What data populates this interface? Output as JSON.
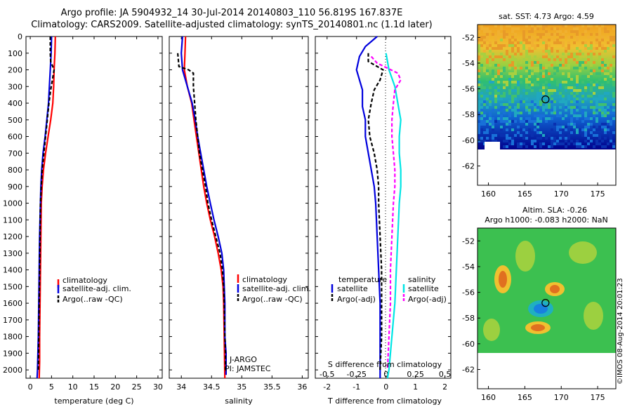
{
  "header": {
    "title_line1": "Argo profile: JA 5904932_14 30-Jul-2014 20140803_110 56.819S 167.837E",
    "title_line2": "Climatology: CARS2009. Satellite-adjusted climatology: synTS_20140801.nc (1.1d later)"
  },
  "footer": {
    "stamp": "©IMOS 08-Aug-2014 20:01:23"
  },
  "colors": {
    "climatology": "#ff0000",
    "satellite": "#0000dd",
    "argo": "#000000",
    "sal_satellite": "#00e5e5",
    "sal_argo": "#ff00ff"
  },
  "chart_data": [
    {
      "type": "line",
      "xlabel": "temperature (deg C)",
      "xlim": [
        -1,
        31
      ],
      "x_ticks": [
        "0",
        "5",
        "10",
        "15",
        "20",
        "25",
        "30"
      ],
      "ylim": [
        2050,
        0
      ],
      "y_ticks": [
        "0",
        "100",
        "200",
        "300",
        "400",
        "500",
        "600",
        "700",
        "800",
        "900",
        "1000",
        "1100",
        "1200",
        "1300",
        "1400",
        "1500",
        "1600",
        "1700",
        "1800",
        "1900",
        "2000"
      ],
      "legend": [
        "climatology",
        "satellite-adj. clim.",
        "Argo(..raw -QC)"
      ],
      "legend_placement": "lower-center",
      "series": [
        {
          "name": "climatology",
          "color": "#ff0000",
          "dash": "",
          "points": [
            [
              5.9,
              0
            ],
            [
              5.8,
              100
            ],
            [
              5.6,
              200
            ],
            [
              5.5,
              300
            ],
            [
              5.3,
              400
            ],
            [
              4.8,
              500
            ],
            [
              4.2,
              600
            ],
            [
              3.6,
              700
            ],
            [
              3.1,
              800
            ],
            [
              2.8,
              900
            ],
            [
              2.6,
              1000
            ],
            [
              2.5,
              1200
            ],
            [
              2.4,
              1400
            ],
            [
              2.3,
              1600
            ],
            [
              2.2,
              1800
            ],
            [
              2.2,
              1950
            ],
            [
              2.1,
              2050
            ]
          ]
        },
        {
          "name": "satellite-adj. clim.",
          "color": "#0000dd",
          "dash": "",
          "points": [
            [
              5.0,
              0
            ],
            [
              4.9,
              100
            ],
            [
              4.7,
              200
            ],
            [
              4.5,
              300
            ],
            [
              4.3,
              400
            ],
            [
              3.9,
              500
            ],
            [
              3.5,
              600
            ],
            [
              3.0,
              700
            ],
            [
              2.7,
              800
            ],
            [
              2.5,
              900
            ],
            [
              2.4,
              1000
            ],
            [
              2.2,
              1200
            ],
            [
              2.1,
              1400
            ],
            [
              2.0,
              1600
            ],
            [
              1.9,
              1800
            ],
            [
              1.7,
              2000
            ],
            [
              1.6,
              2050
            ]
          ]
        },
        {
          "name": "Argo(..raw -QC)",
          "color": "#000000",
          "dash": "5,3",
          "points": [
            [
              4.7,
              0
            ],
            [
              4.7,
              100
            ],
            [
              4.8,
              150
            ],
            [
              5.6,
              200
            ],
            [
              5.2,
              260
            ],
            [
              4.8,
              320
            ],
            [
              4.4,
              400
            ],
            [
              4.0,
              500
            ],
            [
              3.6,
              600
            ],
            [
              3.2,
              700
            ],
            [
              2.8,
              800
            ],
            [
              2.6,
              900
            ],
            [
              2.4,
              1000
            ],
            [
              2.3,
              1200
            ],
            [
              2.2,
              1400
            ],
            [
              2.1,
              1600
            ],
            [
              2.0,
              1800
            ],
            [
              1.9,
              2000
            ]
          ]
        }
      ]
    },
    {
      "type": "line",
      "xlabel": "salinity",
      "xlim": [
        33.8,
        36.1
      ],
      "x_ticks": [
        "34",
        "34.5",
        "35",
        "35.5",
        "36"
      ],
      "ylim": [
        2050,
        0
      ],
      "legend": [
        "climatology",
        "satellite-adj. clim.",
        "Argo(..raw -QC)"
      ],
      "legend_placement": "lower-right",
      "annotations": [
        "J-ARGO",
        "PI: JAMSTEC"
      ],
      "series": [
        {
          "name": "climatology",
          "color": "#ff0000",
          "dash": "",
          "points": [
            [
              34.07,
              0
            ],
            [
              34.06,
              100
            ],
            [
              34.05,
              200
            ],
            [
              34.1,
              300
            ],
            [
              34.17,
              400
            ],
            [
              34.21,
              500
            ],
            [
              34.25,
              600
            ],
            [
              34.29,
              700
            ],
            [
              34.33,
              800
            ],
            [
              34.37,
              900
            ],
            [
              34.42,
              1000
            ],
            [
              34.48,
              1100
            ],
            [
              34.55,
              1200
            ],
            [
              34.61,
              1300
            ],
            [
              34.66,
              1400
            ],
            [
              34.69,
              1500
            ],
            [
              34.7,
              1600
            ],
            [
              34.71,
              1800
            ],
            [
              34.72,
              2050
            ]
          ]
        },
        {
          "name": "satellite-adj. clim.",
          "color": "#0000dd",
          "dash": "",
          "points": [
            [
              34.02,
              0
            ],
            [
              34.0,
              100
            ],
            [
              34.02,
              200
            ],
            [
              34.1,
              300
            ],
            [
              34.18,
              400
            ],
            [
              34.23,
              500
            ],
            [
              34.27,
              600
            ],
            [
              34.32,
              700
            ],
            [
              34.37,
              800
            ],
            [
              34.42,
              900
            ],
            [
              34.48,
              1000
            ],
            [
              34.54,
              1100
            ],
            [
              34.61,
              1200
            ],
            [
              34.67,
              1300
            ],
            [
              34.7,
              1400
            ],
            [
              34.71,
              1500
            ],
            [
              34.72,
              1600
            ],
            [
              34.72,
              1800
            ],
            [
              34.74,
              1900
            ],
            [
              34.74,
              2030
            ]
          ]
        },
        {
          "name": "Argo(..raw -QC)",
          "color": "#000000",
          "dash": "5,3",
          "points": [
            [
              33.94,
              100
            ],
            [
              33.96,
              180
            ],
            [
              34.12,
              200
            ],
            [
              34.2,
              220
            ],
            [
              34.2,
              300
            ],
            [
              34.22,
              400
            ],
            [
              34.24,
              500
            ],
            [
              34.27,
              600
            ],
            [
              34.3,
              700
            ],
            [
              34.35,
              800
            ],
            [
              34.4,
              900
            ],
            [
              34.44,
              1000
            ],
            [
              34.5,
              1100
            ],
            [
              34.57,
              1200
            ],
            [
              34.64,
              1300
            ],
            [
              34.68,
              1400
            ],
            [
              34.7,
              1500
            ],
            [
              34.71,
              1600
            ],
            [
              34.72,
              1800
            ],
            [
              34.73,
              1900
            ],
            [
              34.73,
              2000
            ]
          ]
        }
      ]
    },
    {
      "type": "line",
      "xlabel": "T difference from climatology",
      "xlabel_top": "S difference from climatology",
      "xlim": [
        -2.4,
        2.2
      ],
      "x_ticks": [
        "-2",
        "-1",
        "0",
        "1",
        "2"
      ],
      "x_ticks_salinity": [
        "-0.5",
        "-0.25",
        "0",
        "0.25",
        "0.5"
      ],
      "ylim": [
        2050,
        0
      ],
      "legend": [
        "temperature",
        "satellite",
        "Argo(-adj)",
        "salinity",
        "satellite",
        "Argo(-adj)"
      ],
      "legend_placement": "lower-center",
      "series": [
        {
          "name": "temperature satellite",
          "color": "#0000dd",
          "dash": "",
          "points": [
            [
              -0.3,
              0
            ],
            [
              -0.7,
              60
            ],
            [
              -0.9,
              120
            ],
            [
              -1.0,
              200
            ],
            [
              -0.9,
              260
            ],
            [
              -0.8,
              320
            ],
            [
              -0.8,
              420
            ],
            [
              -0.7,
              500
            ],
            [
              -0.7,
              600
            ],
            [
              -0.6,
              700
            ],
            [
              -0.5,
              800
            ],
            [
              -0.4,
              900
            ],
            [
              -0.35,
              1000
            ],
            [
              -0.3,
              1200
            ],
            [
              -0.25,
              1400
            ],
            [
              -0.2,
              1600
            ],
            [
              -0.2,
              1800
            ],
            [
              -0.2,
              2050
            ]
          ]
        },
        {
          "name": "temperature Argo(-adj)",
          "color": "#000000",
          "dash": "5,3",
          "points": [
            [
              -0.6,
              100
            ],
            [
              -0.6,
              150
            ],
            [
              -0.1,
              200
            ],
            [
              -0.2,
              260
            ],
            [
              -0.4,
              320
            ],
            [
              -0.5,
              400
            ],
            [
              -0.6,
              500
            ],
            [
              -0.55,
              600
            ],
            [
              -0.4,
              700
            ],
            [
              -0.3,
              800
            ],
            [
              -0.25,
              900
            ],
            [
              -0.25,
              1000
            ],
            [
              -0.2,
              1200
            ],
            [
              -0.15,
              1400
            ],
            [
              -0.15,
              1600
            ],
            [
              -0.15,
              1800
            ],
            [
              -0.2,
              2000
            ]
          ]
        },
        {
          "name": "salinity satellite",
          "color": "#00e5e5",
          "dash": "",
          "points": [
            [
              0.0,
              100
            ],
            [
              0.1,
              200
            ],
            [
              0.3,
              300
            ],
            [
              0.4,
              400
            ],
            [
              0.5,
              500
            ],
            [
              0.45,
              600
            ],
            [
              0.45,
              700
            ],
            [
              0.5,
              800
            ],
            [
              0.5,
              900
            ],
            [
              0.45,
              1000
            ],
            [
              0.4,
              1200
            ],
            [
              0.35,
              1400
            ],
            [
              0.3,
              1600
            ],
            [
              0.2,
              1800
            ],
            [
              0.1,
              2000
            ],
            [
              0.05,
              2050
            ]
          ]
        },
        {
          "name": "salinity Argo(-adj)",
          "color": "#ff00ff",
          "dash": "5,3",
          "points": [
            [
              -0.5,
              120
            ],
            [
              -0.3,
              160
            ],
            [
              0.4,
              220
            ],
            [
              0.5,
              260
            ],
            [
              0.3,
              320
            ],
            [
              0.25,
              400
            ],
            [
              0.2,
              500
            ],
            [
              0.2,
              600
            ],
            [
              0.25,
              700
            ],
            [
              0.3,
              800
            ],
            [
              0.3,
              900
            ],
            [
              0.25,
              1000
            ],
            [
              0.2,
              1200
            ],
            [
              0.15,
              1400
            ],
            [
              0.15,
              1600
            ],
            [
              0.1,
              1800
            ],
            [
              0.05,
              2000
            ]
          ]
        }
      ]
    },
    {
      "type": "heatmap",
      "title": "sat. SST: 4.73 Argo: 4.59",
      "xlim": [
        158.5,
        177.5
      ],
      "ylim": [
        -63.5,
        -51
      ],
      "x_ticks": [
        "160",
        "165",
        "170",
        "175"
      ],
      "y_ticks": [
        "-52",
        "-54",
        "-56",
        "-58",
        "-60",
        "-62"
      ],
      "marker": {
        "lon": 167.837,
        "lat": -56.819
      }
    },
    {
      "type": "heatmap",
      "title": "Altim. SLA: -0.26",
      "subtitle": "Argo h1000: -0.083 h2000: NaN",
      "xlim": [
        158.5,
        177.5
      ],
      "ylim": [
        -63.5,
        -51
      ],
      "x_ticks": [
        "160",
        "165",
        "170",
        "175"
      ],
      "y_ticks": [
        "-52",
        "-54",
        "-56",
        "-58",
        "-60",
        "-62"
      ],
      "marker": {
        "lon": 167.837,
        "lat": -56.819
      }
    }
  ]
}
